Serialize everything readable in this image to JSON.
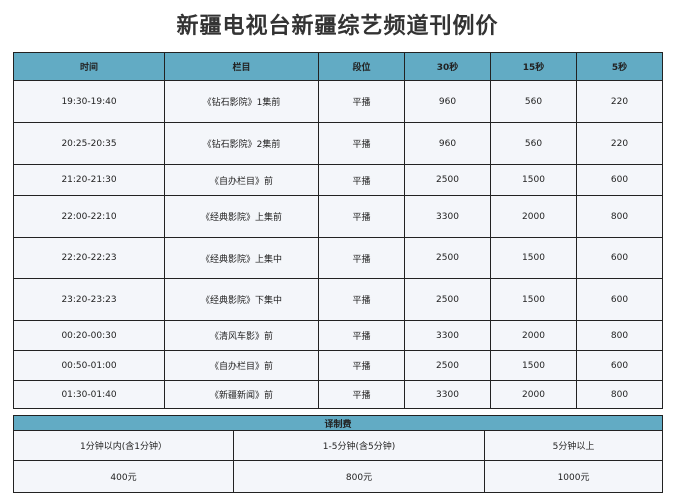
{
  "title": "新疆电视台新疆综艺频道刊例价",
  "rate_table": {
    "headers": [
      "时间",
      "栏目",
      "段位",
      "30秒",
      "15秒",
      "5秒"
    ],
    "rows": [
      [
        "19:30-19:40",
        "《钻石影院》1集前",
        "平播",
        "960",
        "560",
        "220"
      ],
      [
        "20:25-20:35",
        "《钻石影院》2集前",
        "平播",
        "960",
        "560",
        "220"
      ],
      [
        "21:20-21:30",
        "《自办栏目》前",
        "平播",
        "2500",
        "1500",
        "600"
      ],
      [
        "22:00-22:10",
        "《经典影院》上集前",
        "平播",
        "3300",
        "2000",
        "800"
      ],
      [
        "22:20-22:23",
        "《经典影院》上集中",
        "平播",
        "2500",
        "1500",
        "600"
      ],
      [
        "23:20-23:23",
        "《经典影院》下集中",
        "平播",
        "2500",
        "1500",
        "600"
      ],
      [
        "00:20-00:30",
        "《清风车影》前",
        "平播",
        "3300",
        "2000",
        "800"
      ],
      [
        "00:50-01:00",
        "《自办栏目》前",
        "平播",
        "2500",
        "1500",
        "600"
      ],
      [
        "01:30-01:40",
        "《新疆新闻》前",
        "平播",
        "3300",
        "2000",
        "800"
      ]
    ]
  },
  "production_fee": {
    "title": "译制费",
    "durations": [
      "1分钟以内(含1分钟）",
      "1-5分钟(含5分钟)",
      "5分钟以上"
    ],
    "prices": [
      "400元",
      "800元",
      "1000元"
    ]
  },
  "colors": {
    "header": "#62abc4",
    "cell": "#f4f6fa"
  }
}
